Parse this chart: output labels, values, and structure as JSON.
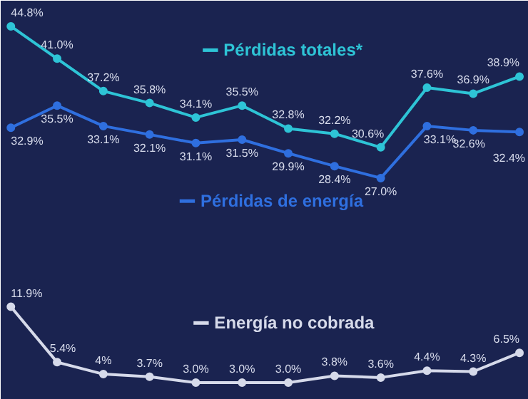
{
  "chart_data": {
    "type": "line",
    "categories": [
      null,
      null,
      null,
      null,
      null,
      null,
      null,
      null,
      null,
      null,
      null,
      null
    ],
    "series": [
      {
        "name": "Pérdidas totales*",
        "color": "#2ec4d6",
        "values": [
          44.8,
          41.0,
          37.2,
          35.8,
          34.1,
          35.5,
          32.8,
          32.2,
          30.6,
          37.6,
          36.9,
          38.9
        ],
        "value_labels": [
          "44.8%",
          "41.0%",
          "37.2%",
          "35.8%",
          "34.1%",
          "35.5%",
          "32.8%",
          "32.2%",
          "30.6%",
          "37.6%",
          "36.9%",
          "38.9%"
        ]
      },
      {
        "name": "Pérdidas de energía",
        "color": "#2f6fdf",
        "values": [
          32.9,
          35.5,
          33.1,
          32.1,
          31.1,
          31.5,
          29.9,
          28.4,
          27.0,
          33.1,
          32.6,
          32.4
        ],
        "value_labels": [
          "32.9%",
          "35.5%",
          "33.1%",
          "32.1%",
          "31.1%",
          "31.5%",
          "29.9%",
          "28.4%",
          "27.0%",
          "33.1%",
          "32.6%",
          "32.4%"
        ]
      },
      {
        "name": "Energía no cobrada",
        "color": "#d6daea",
        "values": [
          11.9,
          5.4,
          4,
          3.7,
          3.0,
          3.0,
          3.0,
          3.8,
          3.6,
          4.4,
          4.3,
          6.5
        ],
        "value_labels": [
          "11.9%",
          "5.4%",
          "4%",
          "3.7%",
          "3.0%",
          "3.0%",
          "3.0%",
          "3.8%",
          "3.6%",
          "4.4%",
          "4.3%",
          "6.5%"
        ]
      }
    ],
    "ylim": [
      1,
      47.8
    ],
    "tick_labels": false,
    "grid": false,
    "legend": "top",
    "marker": "circle",
    "line_style": "solid"
  }
}
